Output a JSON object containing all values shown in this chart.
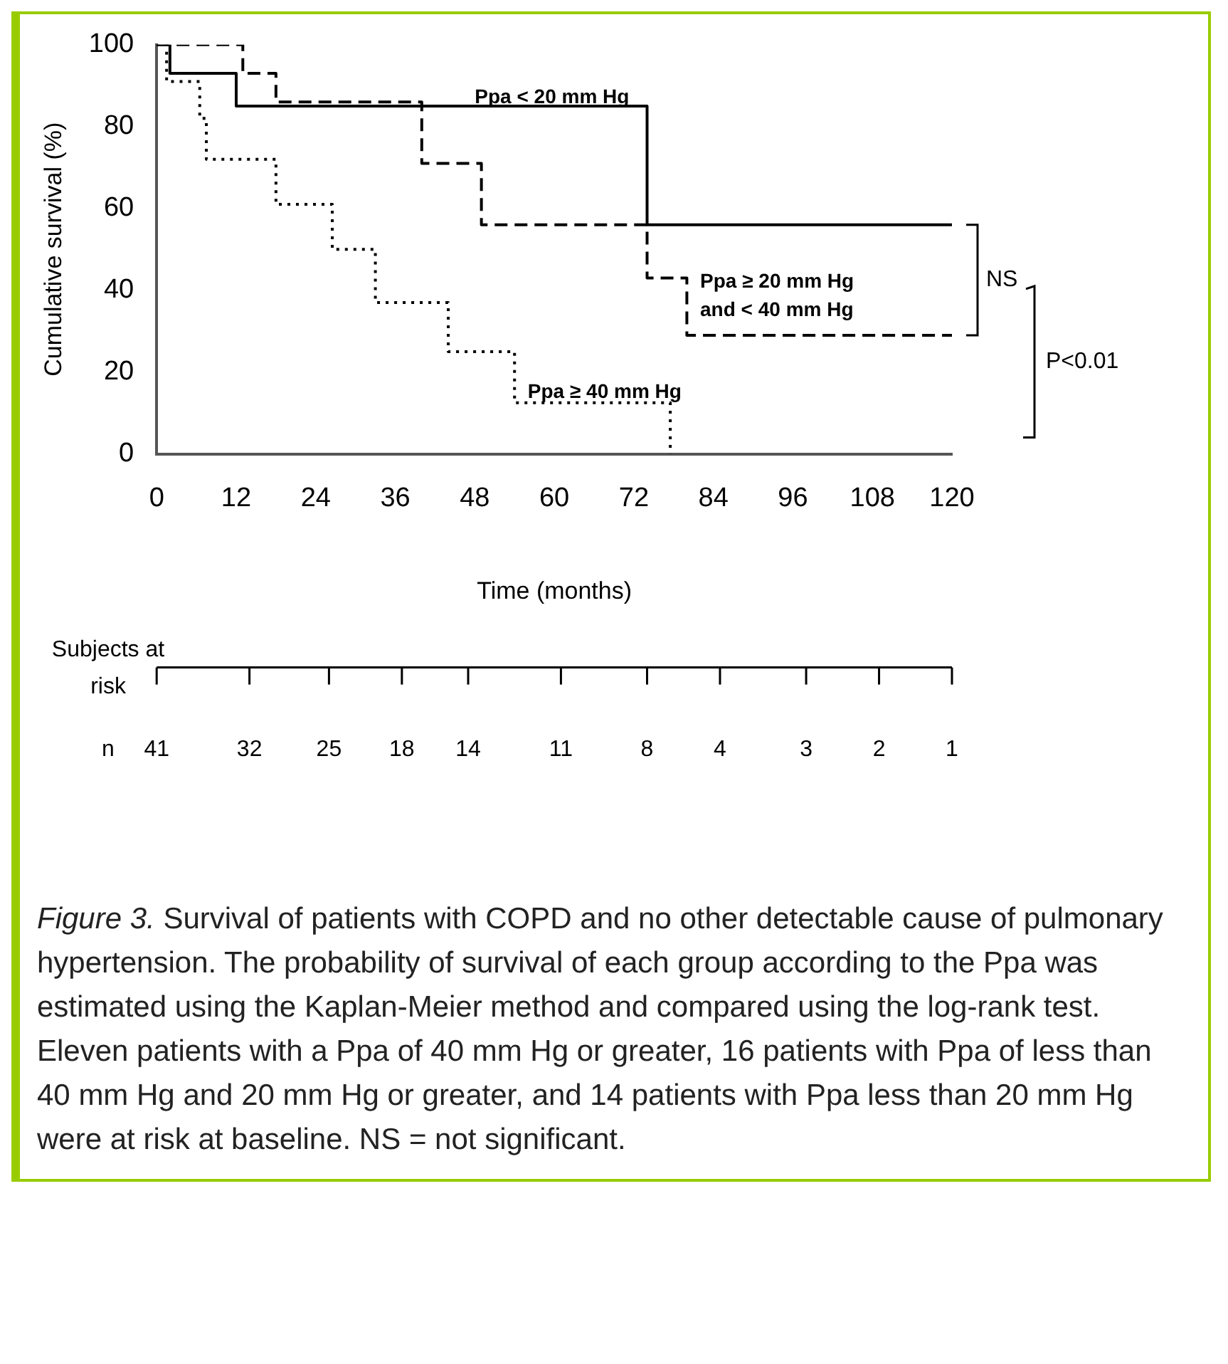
{
  "chart_data": {
    "type": "step",
    "xlabel": "Time (months)",
    "ylabel": "Cumulative survival (%)",
    "xlim": [
      0,
      120
    ],
    "xticks": [
      0,
      12,
      24,
      36,
      48,
      60,
      72,
      84,
      96,
      108,
      120
    ],
    "ylim": [
      0,
      100
    ],
    "yticks": [
      0,
      20,
      40,
      60,
      80,
      100
    ],
    "grid": false,
    "legend": false,
    "marker": "none",
    "series": [
      {
        "name": "Ppa < 20 mm Hg",
        "color": "#000000",
        "line_style": "solid",
        "x": [
          0,
          2,
          12,
          74,
          120
        ],
        "values": [
          100,
          93,
          85,
          56,
          56
        ]
      },
      {
        "name": "Ppa ≥ 20 mm Hg\nand < 40 mm Hg",
        "color": "#000000",
        "line_style": "dashed",
        "x": [
          0,
          13,
          18,
          40,
          49,
          74,
          80,
          120
        ],
        "values": [
          100,
          93,
          86,
          71,
          56,
          43,
          29,
          29
        ]
      },
      {
        "name": "Ppa ≥ 40 mm Hg",
        "color": "#000000",
        "line_style": "dotted",
        "x": [
          0,
          1.5,
          6.5,
          7.5,
          18,
          26.5,
          33,
          44,
          54,
          77.5
        ],
        "values": [
          100,
          91,
          82,
          72,
          61,
          50,
          37,
          25,
          12.5,
          0
        ]
      }
    ],
    "annotations": [
      "NS",
      "P<0.01",
      "Subjects at risk",
      "n",
      "41",
      "32",
      "25",
      "18",
      "14",
      "11",
      "8",
      "4",
      "3",
      "2",
      "1",
      "Figure 3. Survival of patients with COPD and no other detectable cause of pulmonary hypertension. The probability of survival of each group according to the Ppa was estimated using the Kaplan-Meier method and compared using the log-rank test. Eleven patients with a Ppa of 40 mm Hg or greater, 16 patients with Ppa of less than 40 mm Hg and 20 mm Hg or greater, and 14 patients with Ppa less than 20 mm Hg were at risk at baseline. NS = not significant."
    ]
  }
}
